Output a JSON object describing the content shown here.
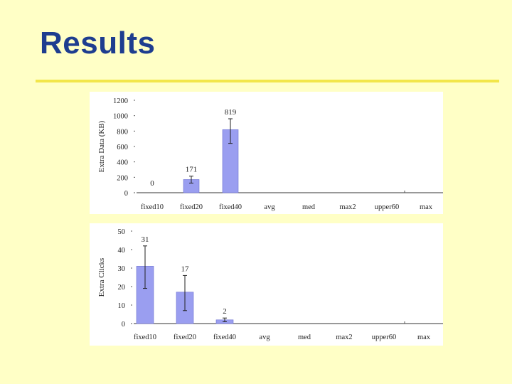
{
  "slide": {
    "title": "Results"
  },
  "chart_data": [
    {
      "type": "bar",
      "ylabel": "Extra Data (KB)",
      "xlabel": "",
      "ylim": [
        0,
        1200
      ],
      "yticks": [
        0,
        200,
        400,
        600,
        800,
        1000,
        1200
      ],
      "categories": [
        "fixed10",
        "fixed20",
        "fixed40",
        "avg",
        "med",
        "max2",
        "upper60",
        "max"
      ],
      "values": [
        0,
        171,
        819,
        null,
        null,
        null,
        null,
        null
      ],
      "data_labels": [
        "0",
        "171",
        "819",
        "",
        "",
        "",
        "",
        ""
      ],
      "error_low": [
        0,
        125,
        640,
        null,
        null,
        null,
        null,
        null
      ],
      "error_high": [
        0,
        215,
        960,
        null,
        null,
        null,
        null,
        null
      ],
      "bar_color": "#9a9ef0",
      "grid": false
    },
    {
      "type": "bar",
      "ylabel": "Extra Clicks",
      "xlabel": "",
      "ylim": [
        0,
        50
      ],
      "yticks": [
        0,
        10,
        20,
        30,
        40,
        50
      ],
      "categories": [
        "fixed10",
        "fixed20",
        "fixed40",
        "avg",
        "med",
        "max2",
        "upper60",
        "max"
      ],
      "values": [
        31,
        17,
        2,
        null,
        null,
        null,
        null,
        null
      ],
      "data_labels": [
        "31",
        "17",
        "2",
        "",
        "",
        "",
        "",
        ""
      ],
      "error_low": [
        19,
        7,
        1,
        null,
        null,
        null,
        null,
        null
      ],
      "error_high": [
        42,
        26,
        3,
        null,
        null,
        null,
        null,
        null
      ],
      "bar_color": "#9a9ef0",
      "grid": false
    }
  ]
}
